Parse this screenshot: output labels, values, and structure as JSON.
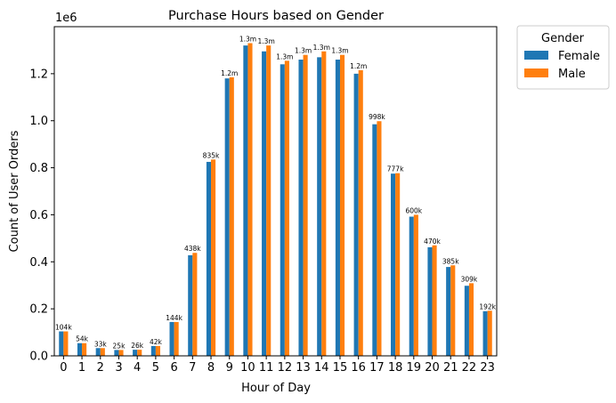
{
  "chart_data": {
    "type": "bar",
    "title": "Purchase Hours based on Gender",
    "xlabel": "Hour of Day",
    "ylabel": "Count of User Orders",
    "y_offset_label": "1e6",
    "ylim": [
      0,
      1.4
    ],
    "yticks": [
      "0.0",
      "0.2",
      "0.4",
      "0.6",
      "0.8",
      "1.0",
      "1.2"
    ],
    "ytick_values": [
      0,
      0.2,
      0.4,
      0.6,
      0.8,
      1.0,
      1.2
    ],
    "grid": false,
    "legend_position": "outside-top-right",
    "legend_title": "Gender",
    "categories": [
      "0",
      "1",
      "2",
      "3",
      "4",
      "5",
      "6",
      "7",
      "8",
      "9",
      "10",
      "11",
      "12",
      "13",
      "14",
      "15",
      "16",
      "17",
      "18",
      "19",
      "20",
      "21",
      "22",
      "23"
    ],
    "series": [
      {
        "name": "Female",
        "color": "#1f77b4",
        "values": [
          0.104,
          0.054,
          0.033,
          0.025,
          0.026,
          0.042,
          0.144,
          0.428,
          0.825,
          1.18,
          1.32,
          1.295,
          1.24,
          1.26,
          1.27,
          1.26,
          1.2,
          0.985,
          0.775,
          0.592,
          0.462,
          0.378,
          0.298,
          0.19
        ]
      },
      {
        "name": "Male",
        "color": "#ff7f0e",
        "values": [
          0.104,
          0.054,
          0.033,
          0.025,
          0.026,
          0.042,
          0.144,
          0.438,
          0.835,
          1.185,
          1.33,
          1.32,
          1.255,
          1.28,
          1.295,
          1.28,
          1.215,
          0.998,
          0.777,
          0.6,
          0.47,
          0.385,
          0.309,
          0.192
        ]
      }
    ],
    "data_labels": [
      "104k",
      "54k",
      "33k",
      "25k",
      "26k",
      "42k",
      "144k",
      "438k",
      "835k",
      "1.2m",
      "1.3m",
      "1.3m",
      "1.3m",
      "1.3m",
      "1.3m",
      "1.3m",
      "1.2m",
      "998k",
      "777k",
      "600k",
      "470k",
      "385k",
      "309k",
      "192k"
    ]
  }
}
